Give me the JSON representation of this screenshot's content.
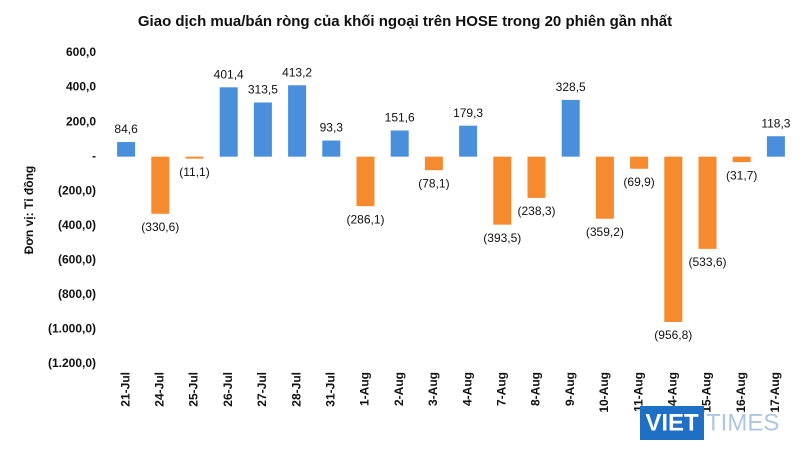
{
  "chart_data": {
    "type": "bar",
    "title": "Giao dịch mua/bán ròng của khối ngoại trên HOSE trong 20 phiên gần nhất",
    "y_label": "Đơn vị: Tỉ đồng",
    "categories": [
      "21-Jul",
      "24-Jul",
      "25-Jul",
      "26-Jul",
      "27-Jul",
      "28-Jul",
      "31-Jul",
      "1-Aug",
      "2-Aug",
      "3-Aug",
      "4-Aug",
      "7-Aug",
      "8-Aug",
      "9-Aug",
      "10-Aug",
      "11-Aug",
      "14-Aug",
      "15-Aug",
      "16-Aug",
      "17-Aug"
    ],
    "values": [
      84.6,
      -330.6,
      -11.1,
      401.4,
      313.5,
      413.2,
      93.3,
      -286.1,
      151.6,
      -78.1,
      179.3,
      -393.5,
      -238.3,
      328.5,
      -359.2,
      -69.9,
      -956.8,
      -533.6,
      -31.7,
      118.3
    ],
    "value_labels": [
      "84,6",
      "(330,6)",
      "(11,1)",
      "401,4",
      "313,5",
      "413,2",
      "93,3",
      "(286,1)",
      "151,6",
      "(78,1)",
      "179,3",
      "(393,5)",
      "(238,3)",
      "328,5",
      "(359,2)",
      "(69,9)",
      "(956,8)",
      "(533,6)",
      "(31,7)",
      "118,3"
    ],
    "positive_color": "#4a8fdb",
    "negative_color": "#f58a2e",
    "ylim": [
      -1200,
      600
    ],
    "yticks": [
      {
        "value": 600,
        "label": "600,0"
      },
      {
        "value": 400,
        "label": "400,0"
      },
      {
        "value": 200,
        "label": "200,0"
      },
      {
        "value": 0,
        "label": "-"
      },
      {
        "value": -200,
        "label": "(200,0)"
      },
      {
        "value": -400,
        "label": "(400,0)"
      },
      {
        "value": -600,
        "label": "(600,0)"
      },
      {
        "value": -800,
        "label": "(800,0)"
      },
      {
        "value": -1000,
        "label": "(1.000,0)"
      },
      {
        "value": -1200,
        "label": "(1.200,0)"
      }
    ],
    "grid": false
  },
  "logo": {
    "part1": "VIET",
    "part2": "TIMES"
  }
}
